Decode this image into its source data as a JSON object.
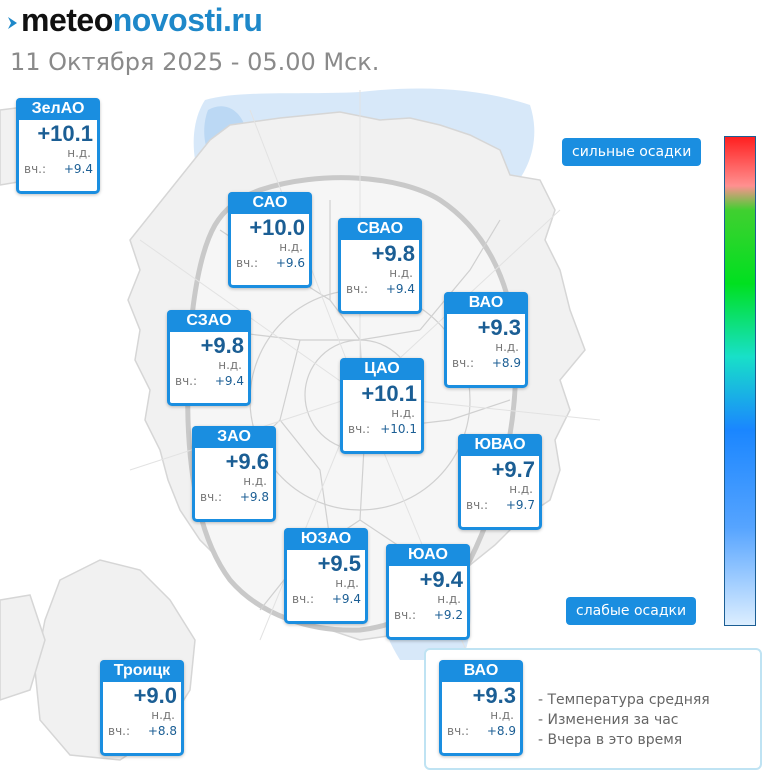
{
  "header": {
    "logo_part1": "meteo",
    "logo_part2": "novosti.ru",
    "date_time": "11 Октября 2025 - 05.00 Мск."
  },
  "colors": {
    "accent": "#1a8ee0",
    "text_blue": "#1b5e94",
    "precip_light": "#dceeff"
  },
  "districts": [
    {
      "name": "ЗелАО",
      "temp": "+10.1",
      "change": "н.д.",
      "yesterday_label": "вч.:",
      "yesterday": "+9.4"
    },
    {
      "name": "САО",
      "temp": "+10.0",
      "change": "н.д.",
      "yesterday_label": "вч.:",
      "yesterday": "+9.6"
    },
    {
      "name": "СВАО",
      "temp": "+9.8",
      "change": "н.д.",
      "yesterday_label": "вч.:",
      "yesterday": "+9.4"
    },
    {
      "name": "ВАО",
      "temp": "+9.3",
      "change": "н.д.",
      "yesterday_label": "вч.:",
      "yesterday": "+8.9"
    },
    {
      "name": "СЗАО",
      "temp": "+9.8",
      "change": "н.д.",
      "yesterday_label": "вч.:",
      "yesterday": "+9.4"
    },
    {
      "name": "ЦАО",
      "temp": "+10.1",
      "change": "н.д.",
      "yesterday_label": "вч.:",
      "yesterday": "+10.1"
    },
    {
      "name": "ЗАО",
      "temp": "+9.6",
      "change": "н.д.",
      "yesterday_label": "вч.:",
      "yesterday": "+9.8"
    },
    {
      "name": "ЮВАО",
      "temp": "+9.7",
      "change": "н.д.",
      "yesterday_label": "вч.:",
      "yesterday": "+9.7"
    },
    {
      "name": "ЮЗАО",
      "temp": "+9.5",
      "change": "н.д.",
      "yesterday_label": "вч.:",
      "yesterday": "+9.4"
    },
    {
      "name": "ЮАО",
      "temp": "+9.4",
      "change": "н.д.",
      "yesterday_label": "вч.:",
      "yesterday": "+9.2"
    },
    {
      "name": "Троицк",
      "temp": "+9.0",
      "change": "н.д.",
      "yesterday_label": "вч.:",
      "yesterday": "+8.8"
    }
  ],
  "precip_scale": {
    "top_label": "сильные осадки",
    "bottom_label": "слабые осадки"
  },
  "legend": {
    "sample": {
      "name": "ВАО",
      "temp": "+9.3",
      "change": "н.д.",
      "yesterday_label": "вч.:",
      "yesterday": "+8.9"
    },
    "items": [
      "- Температура средняя",
      "- Изменения за час",
      "- Вчера в это время"
    ]
  }
}
